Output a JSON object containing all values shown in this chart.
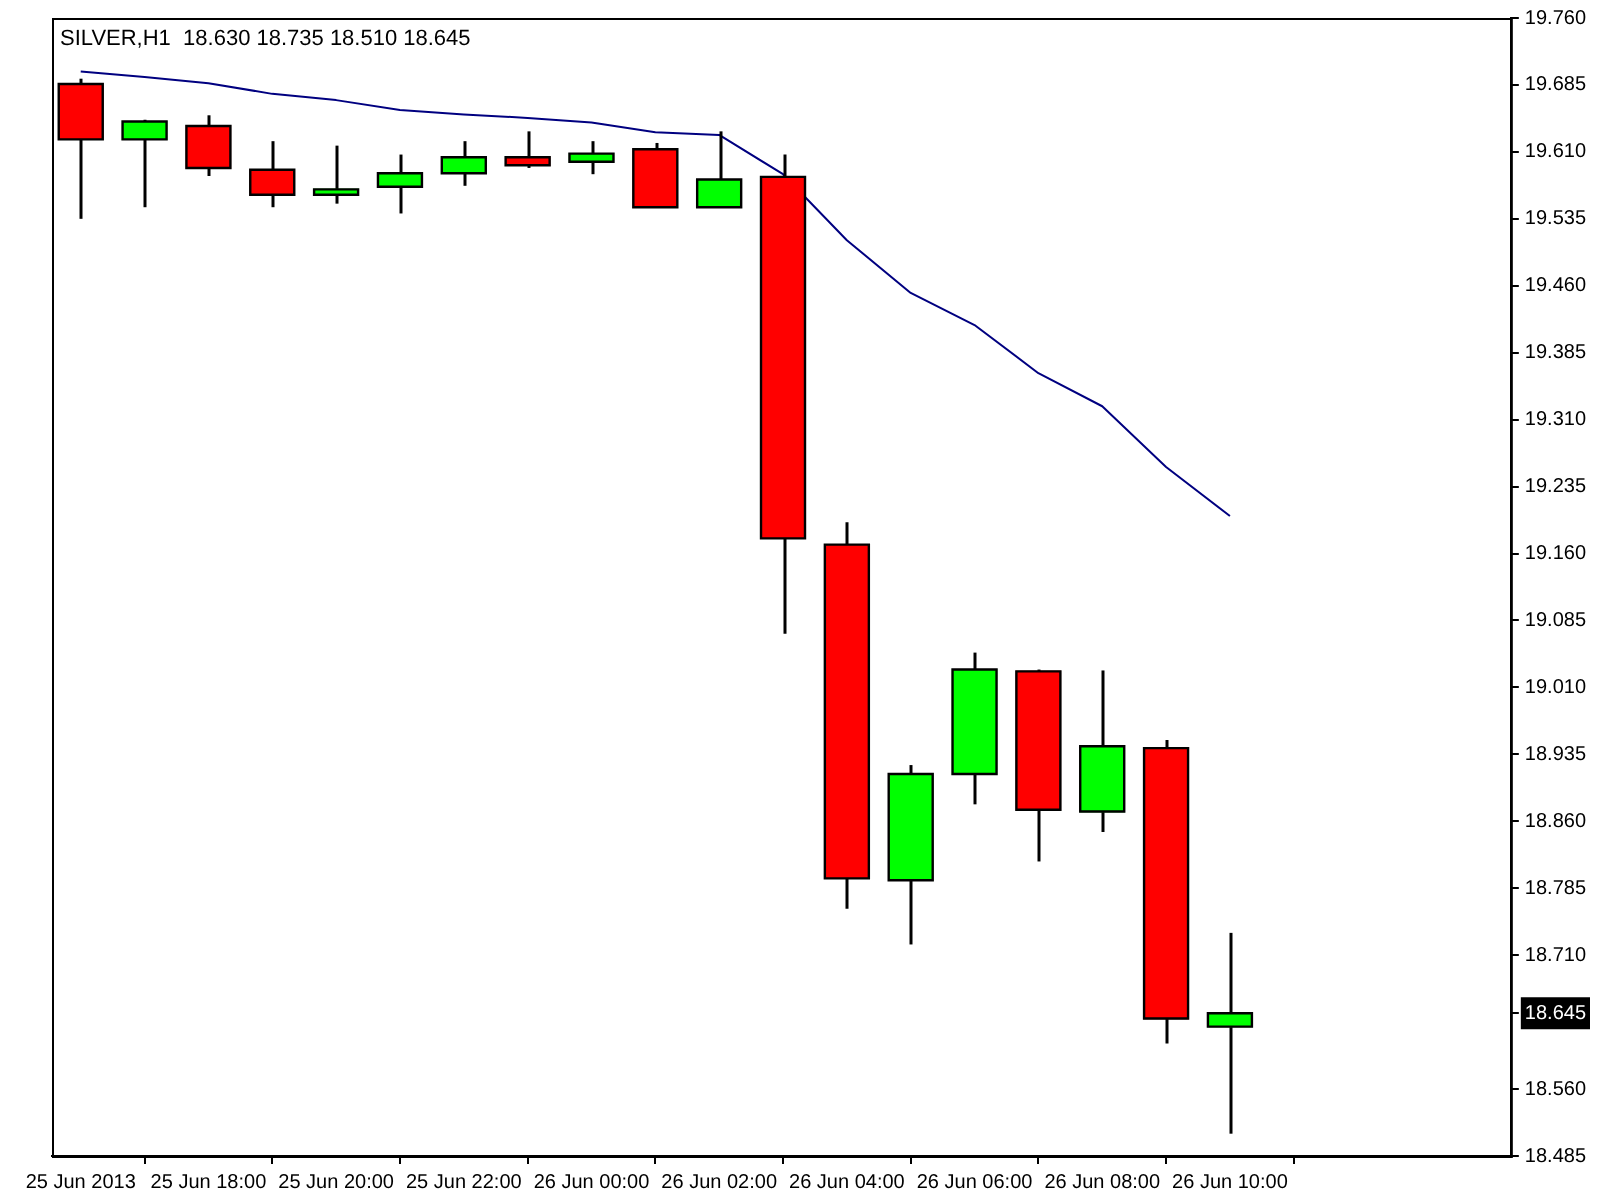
{
  "chart_data": {
    "type": "candlestick",
    "title": "SILVER,H1  18.630 18.735 18.510 18.645",
    "categories": [
      "25 Jun 2013",
      null,
      "25 Jun 18:00",
      null,
      "25 Jun 20:00",
      null,
      "25 Jun 22:00",
      null,
      "26 Jun 00:00",
      null,
      "26 Jun 02:00",
      null,
      "26 Jun 04:00",
      null,
      "26 Jun 06:00",
      null,
      "26 Jun 08:00",
      null,
      "26 Jun 10:00"
    ],
    "ohlc": [
      [
        19.686,
        19.692,
        19.535,
        19.624
      ],
      [
        19.624,
        19.646,
        19.548,
        19.644
      ],
      [
        19.639,
        19.651,
        19.583,
        19.592
      ],
      [
        19.59,
        19.622,
        19.548,
        19.562
      ],
      [
        19.562,
        19.617,
        19.552,
        19.568
      ],
      [
        19.571,
        19.607,
        19.541,
        19.586
      ],
      [
        19.586,
        19.622,
        19.572,
        19.604
      ],
      [
        19.604,
        19.633,
        19.592,
        19.595
      ],
      [
        19.599,
        19.622,
        19.585,
        19.608
      ],
      [
        19.613,
        19.62,
        19.548,
        19.548
      ],
      [
        19.548,
        19.633,
        19.548,
        19.579
      ],
      [
        19.582,
        19.607,
        19.07,
        19.177
      ],
      [
        19.17,
        19.195,
        18.762,
        18.796
      ],
      [
        18.794,
        18.923,
        18.722,
        18.913
      ],
      [
        18.913,
        19.049,
        18.879,
        19.03
      ],
      [
        19.028,
        19.03,
        18.815,
        18.873
      ],
      [
        18.871,
        19.029,
        18.848,
        18.944
      ],
      [
        18.942,
        18.951,
        18.611,
        18.639
      ],
      [
        18.63,
        18.735,
        18.51,
        18.645
      ]
    ],
    "colors": [
      "#ff0000",
      "#00ff00",
      "#ff0000",
      "#ff0000",
      "#00ff00",
      "#00ff00",
      "#00ff00",
      "#ff0000",
      "#00ff00",
      "#ff0000",
      "#00ff00",
      "#ff0000",
      "#ff0000",
      "#00ff00",
      "#00ff00",
      "#ff0000",
      "#00ff00",
      "#ff0000",
      "#00ff00"
    ],
    "series": [
      {
        "type": "line",
        "color": "#000080",
        "values": [
          19.7,
          19.694,
          19.687,
          19.675,
          19.668,
          19.657,
          19.652,
          19.648,
          19.643,
          19.632,
          19.629,
          19.585,
          19.511,
          19.452,
          19.416,
          19.362,
          19.325,
          19.257,
          19.202
        ]
      }
    ],
    "ylim": [
      18.485,
      19.76
    ],
    "yticks": [
      {
        "value": 19.76,
        "label": "19.760"
      },
      {
        "value": 19.685,
        "label": "19.685"
      },
      {
        "value": 19.61,
        "label": "19.610"
      },
      {
        "value": 19.535,
        "label": "19.535"
      },
      {
        "value": 19.46,
        "label": "19.460"
      },
      {
        "value": 19.385,
        "label": "19.385"
      },
      {
        "value": 19.31,
        "label": "19.310"
      },
      {
        "value": 19.235,
        "label": "19.235"
      },
      {
        "value": 19.16,
        "label": "19.160"
      },
      {
        "value": 19.085,
        "label": "19.085"
      },
      {
        "value": 19.01,
        "label": "19.010"
      },
      {
        "value": 18.935,
        "label": "18.935"
      },
      {
        "value": 18.86,
        "label": "18.860"
      },
      {
        "value": 18.785,
        "label": "18.785"
      },
      {
        "value": 18.71,
        "label": "18.710"
      },
      {
        "value": 18.645,
        "label": "18.645"
      },
      {
        "value": 18.56,
        "label": "18.560"
      },
      {
        "value": 18.485,
        "label": "18.485"
      }
    ],
    "marker": "none",
    "legend": false
  }
}
